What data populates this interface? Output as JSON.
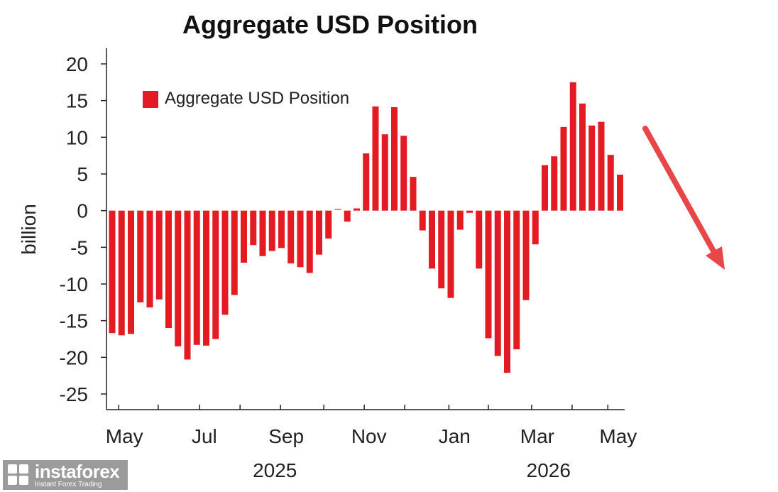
{
  "chart_data": {
    "type": "bar",
    "title": "Aggregate USD Position",
    "ylabel": "billion",
    "xlabel": "",
    "ylim": [
      -25,
      20
    ],
    "yticks": [
      20,
      15,
      10,
      5,
      0,
      -5,
      -10,
      -15,
      -20,
      -25
    ],
    "legend": {
      "label": "Aggregate USD Position",
      "placement": "top-left"
    },
    "grid": false,
    "series": [
      {
        "name": "Aggregate USD Position",
        "color": "#e31b23",
        "values": [
          -16.7,
          -17.0,
          -16.8,
          -12.5,
          -13.2,
          -12.1,
          -16.0,
          -18.5,
          -20.3,
          -18.3,
          -18.4,
          -17.5,
          -14.2,
          -11.5,
          -7.1,
          -4.7,
          -6.2,
          -5.5,
          -5.1,
          -7.2,
          -7.7,
          -8.5,
          -6.0,
          -3.8,
          0.1,
          -1.5,
          0.3,
          7.8,
          14.2,
          10.4,
          14.1,
          10.2,
          4.6,
          -2.7,
          -7.9,
          -10.6,
          -11.9,
          -2.6,
          -0.3,
          -7.9,
          -17.4,
          -19.8,
          -22.1,
          -18.9,
          -12.2,
          -4.6,
          6.2,
          7.4,
          11.4,
          17.5,
          14.6,
          11.6,
          12.1,
          7.6,
          4.9
        ]
      }
    ],
    "month_labels": [
      {
        "label": "May",
        "index": 1.3
      },
      {
        "label": "Jul",
        "index": 9.8
      },
      {
        "label": "Sep",
        "index": 18.5
      },
      {
        "label": "Nov",
        "index": 27.3
      },
      {
        "label": "Jan",
        "index": 36.4
      },
      {
        "label": "Mar",
        "index": 45.2
      },
      {
        "label": "May",
        "index": 53.8
      }
    ],
    "month_ticks": [
      0.7,
      4.9,
      9.3,
      13.6,
      17.9,
      22.5,
      26.8,
      31.1,
      35.8,
      40.0,
      44.6,
      48.9,
      52.7
    ],
    "year_labels": [
      {
        "label": "2025",
        "index": 17.3
      },
      {
        "label": "2026",
        "index": 46.4
      }
    ],
    "annotation": {
      "type": "arrow",
      "direction": "down-right",
      "color": "#e8474a"
    }
  },
  "watermark": {
    "brand": "instaforex",
    "tagline": "Instant Forex Trading"
  }
}
